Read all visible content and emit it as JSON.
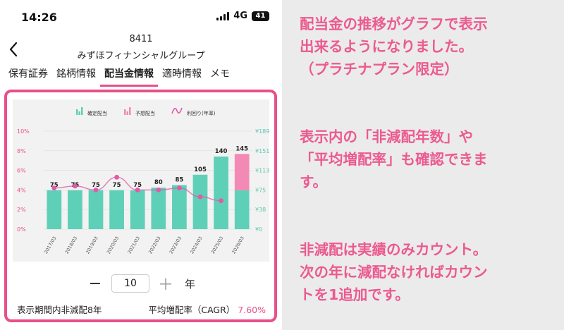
{
  "status": {
    "time": "14:26",
    "network": "4G",
    "battery": "41"
  },
  "header": {
    "code": "8411",
    "company": "みずほフィナンシャルグループ"
  },
  "tabs": [
    "保有証券",
    "銘柄情報",
    "配当金情報",
    "適時情報",
    "メモ"
  ],
  "active_tab": 2,
  "legend": {
    "confirmed": "確定配当",
    "forecast": "予想配当",
    "yield": "利回り(年率)"
  },
  "colors": {
    "accent": "#e8508a",
    "confirmed_bar": "#5fd0b8",
    "forecast_bar": "#f28ab5",
    "yield_line": "#e25aa6"
  },
  "stepper": {
    "minus": "−",
    "plus": "＋",
    "value": "10",
    "unit": "年"
  },
  "footer": {
    "non_reduction": "表示期間内非減配8年",
    "cagr_label": "平均増配率（CAGR）",
    "cagr_value": "7.60%"
  },
  "chart_data": {
    "type": "bar",
    "categories": [
      "2017/03",
      "2018/03",
      "2019/03",
      "2020/03",
      "2021/03",
      "2022/03",
      "2023/03",
      "2024/03",
      "2025/03",
      "2026/03"
    ],
    "series": [
      {
        "name": "確定配当",
        "values": [
          75,
          75,
          75,
          75,
          75,
          80,
          85,
          105,
          140,
          75
        ]
      },
      {
        "name": "予想配当",
        "values": [
          0,
          0,
          0,
          0,
          0,
          0,
          0,
          0,
          0,
          70
        ]
      },
      {
        "name": "利回り(年率)",
        "values": [
          4.2,
          4.4,
          4.0,
          5.3,
          4.0,
          4.0,
          4.2,
          3.3,
          2.9,
          null
        ]
      }
    ],
    "data_labels": [
      "75",
      "75",
      "75",
      "75",
      "75",
      "80",
      "85",
      "105",
      "140",
      "145"
    ],
    "y_left_ticks": [
      "10%",
      "8%",
      "6%",
      "4%",
      "2%",
      "0%"
    ],
    "y_right_ticks": [
      "¥189",
      "¥151",
      "¥113",
      "¥75",
      "¥38",
      "¥0"
    ],
    "y_left_range": [
      0,
      10
    ],
    "y_right_range": [
      0,
      189
    ]
  },
  "side_text": {
    "p1": [
      "配当金の推移がグラフで表示",
      "出来るようになりました。",
      "（プラチナプラン限定）"
    ],
    "p2": [
      "表示内の「非減配年数」や",
      "「平均増配率」も確認できま",
      "す。"
    ],
    "p3": [
      "非減配は実績のみカウント。",
      "次の年に減配なければカウン",
      "トを1追加です。"
    ]
  }
}
